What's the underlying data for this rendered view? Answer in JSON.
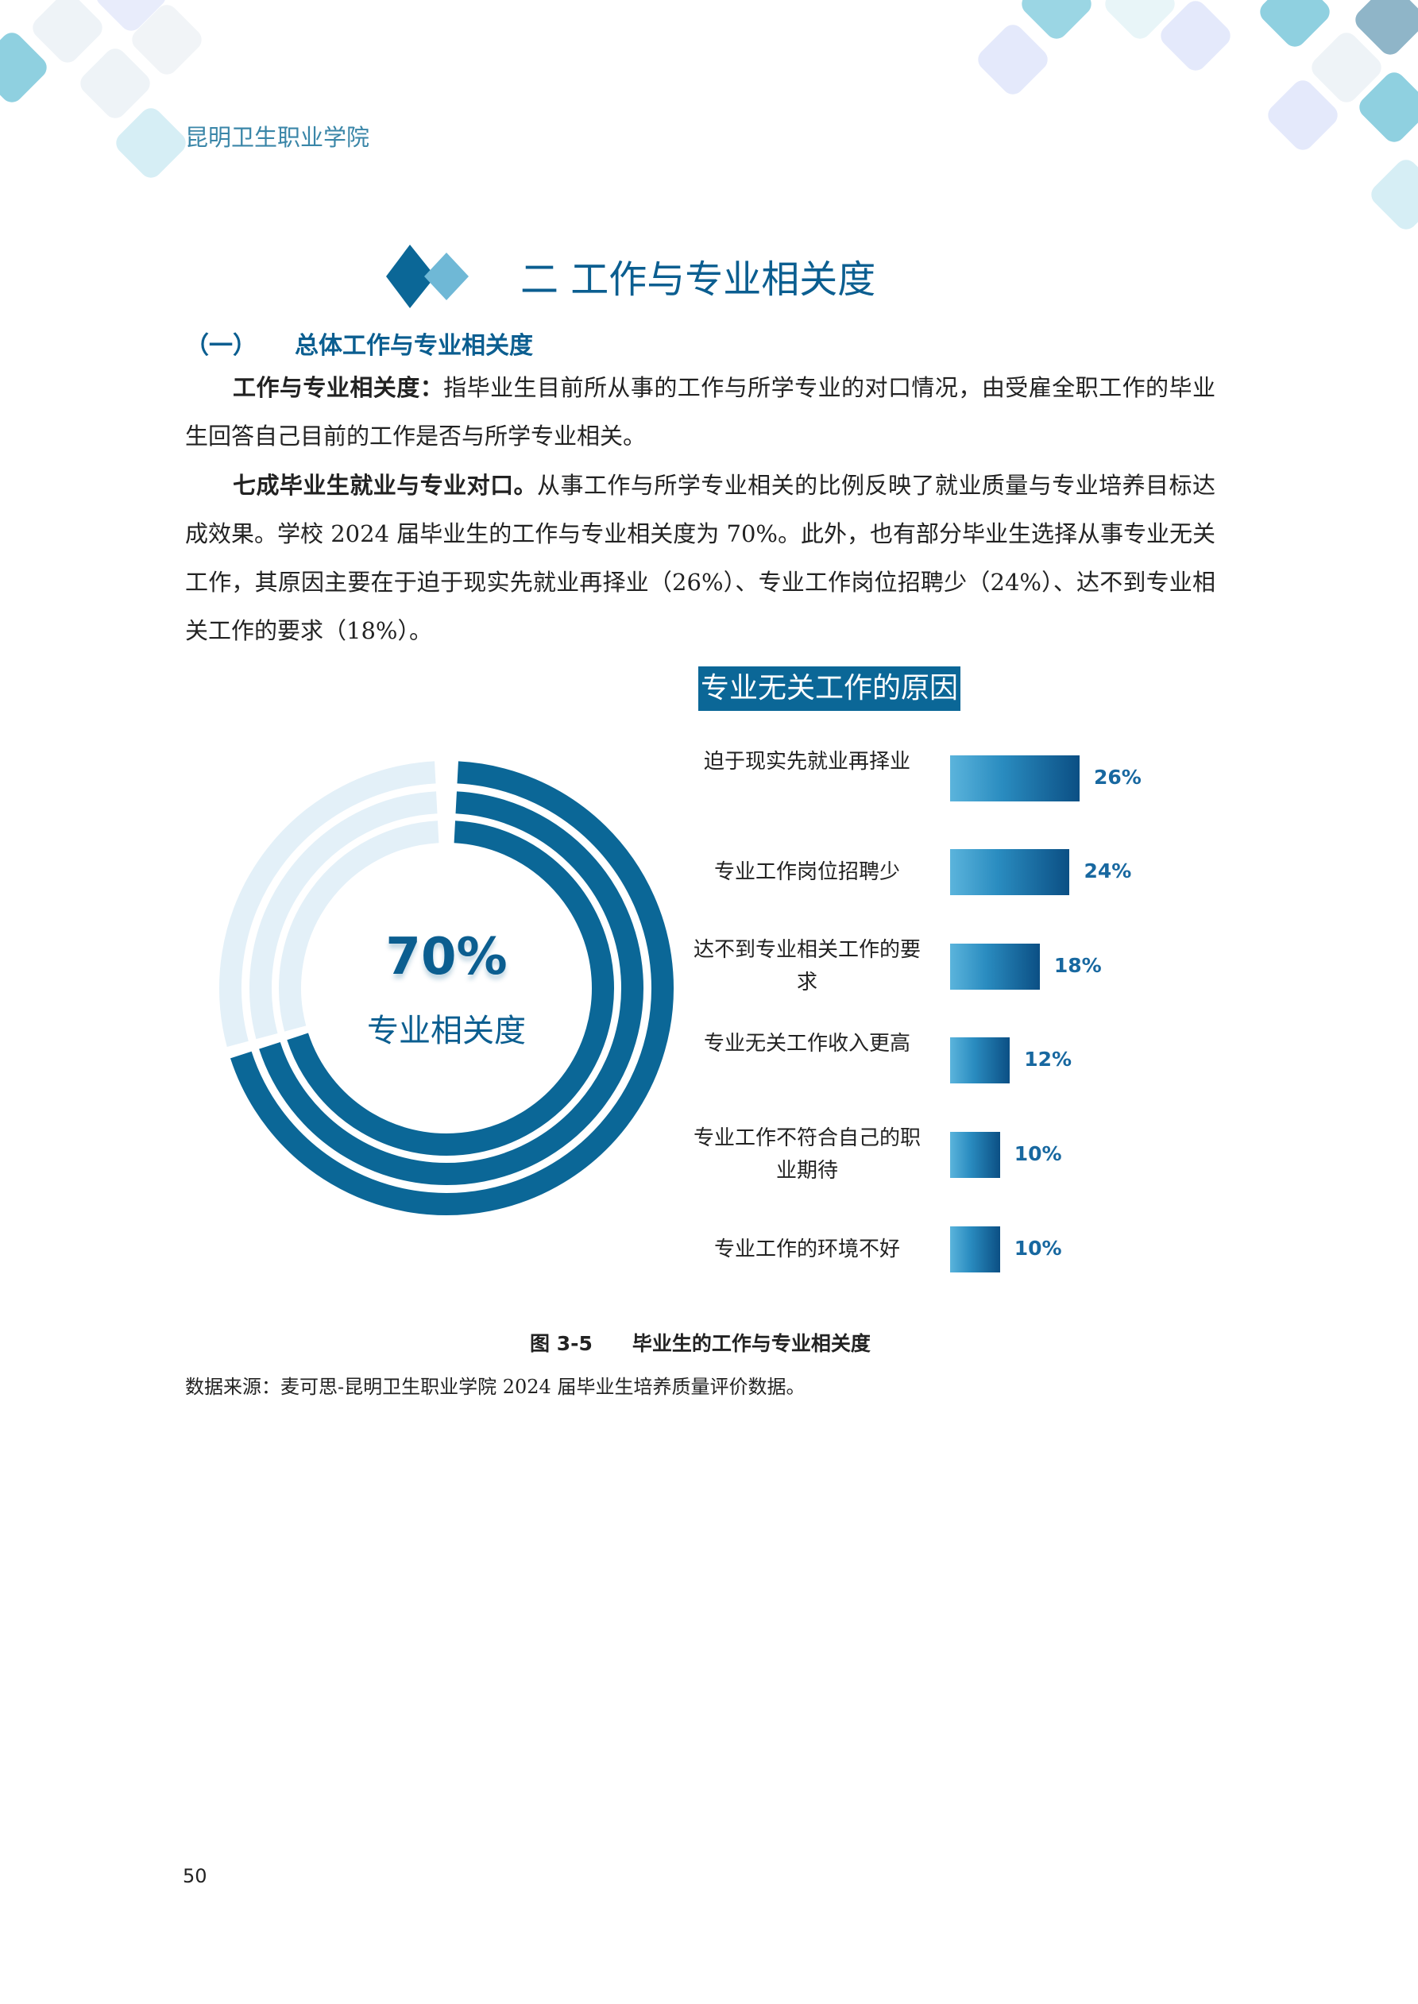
{
  "header": {
    "school": "昆明卫生职业学院"
  },
  "section_title": "二 工作与专业相关度",
  "subsection": {
    "number": "（一）",
    "title": "总体工作与专业相关度"
  },
  "paragraphs": [
    {
      "lead": "工作与专业相关度：",
      "text": "指毕业生目前所从事的工作与所学专业的对口情况，由受雇全职工作的毕业生回答自己目前的工作是否与所学专业相关。"
    },
    {
      "lead": "七成毕业生就业与专业对口。",
      "text": "从事工作与所学专业相关的比例反映了就业质量与专业培养目标达成效果。学校 2024 届毕业生的工作与专业相关度为 70%。此外，也有部分毕业生选择从事专业无关工作，其原因主要在于迫于现实先就业再择业（26%）、专业工作岗位招聘少（24%）、达不到专业相关工作的要求（18%）。"
    }
  ],
  "chart_data": [
    {
      "type": "pie",
      "variant": "concentric-ring",
      "value": 70,
      "value_label": "70%",
      "label": "专业相关度",
      "colors": {
        "filled": "#0b6797",
        "remaining": "#e3f0f8"
      }
    },
    {
      "type": "bar",
      "orientation": "horizontal",
      "title": "专业无关工作的原因",
      "categories": [
        "迫于现实先就业再择业",
        "专业工作岗位招聘少",
        "达不到专业相关工作的要求",
        "专业无关工作收入更高",
        "专业工作不符合自己的职业期待",
        "专业工作的环境不好"
      ],
      "values": [
        26,
        24,
        18,
        12,
        10,
        10
      ],
      "value_labels": [
        "26%",
        "24%",
        "18%",
        "12%",
        "10%",
        "10%"
      ],
      "colors": {
        "bar_start": "#5bb4dc",
        "bar_end": "#0b4f84",
        "title_bg": "#0b6797"
      }
    }
  ],
  "caption": {
    "figure": "图 3-5",
    "title": "毕业生的工作与专业相关度"
  },
  "source": "数据来源：麦可思-昆明卫生职业学院 2024 届毕业生培养质量评价数据。",
  "page_number": "50"
}
